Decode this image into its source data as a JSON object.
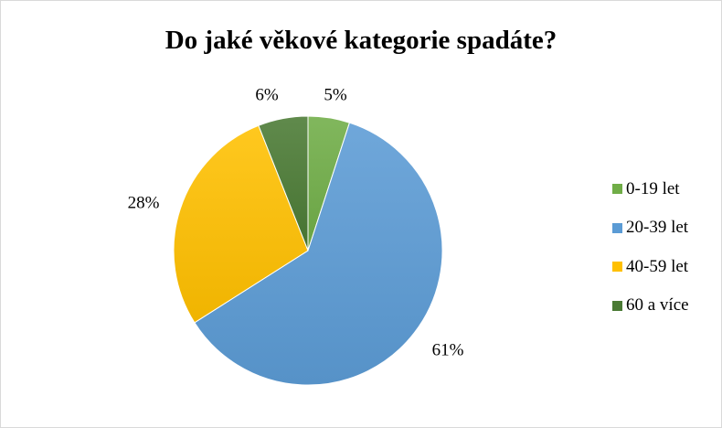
{
  "chart_data": {
    "type": "pie",
    "title": "Do jaké věkové kategorie spadáte?",
    "categories": [
      "0-19 let",
      "20-39 let",
      "40-59 let",
      "60 a více"
    ],
    "values": [
      5,
      61,
      28,
      6
    ],
    "data_labels": [
      "5%",
      "61%",
      "28%",
      "6%"
    ],
    "colors": [
      "#70ad47",
      "#5b9bd5",
      "#ffc000",
      "#4a7a34"
    ],
    "legend_position": "right",
    "start_angle": "12 o'clock, clockwise"
  }
}
